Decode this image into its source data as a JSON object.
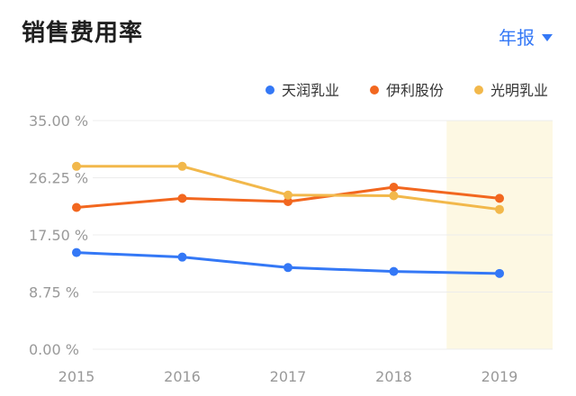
{
  "header": {
    "title": "销售费用率",
    "period_label": "年报"
  },
  "colors": {
    "accent": "#3478f6",
    "highlight_band": "#fdf8e3"
  },
  "chart_data": {
    "type": "line",
    "title": "",
    "xlabel": "",
    "ylabel": "",
    "categories": [
      "2015",
      "2016",
      "2017",
      "2018",
      "2019"
    ],
    "ylim": [
      0,
      35
    ],
    "yticks": [
      "0.00 %",
      "8.75 %",
      "17.50 %",
      "26.25 %",
      "35.00 %"
    ],
    "ytick_values": [
      0,
      8.75,
      17.5,
      26.25,
      35
    ],
    "grid": true,
    "legend_position": "top-right",
    "highlight_category": "2019",
    "series": [
      {
        "name": "天润乳业",
        "color": "#3478f6",
        "values": [
          14.8,
          14.1,
          12.5,
          11.9,
          11.6
        ]
      },
      {
        "name": "伊利股份",
        "color": "#f2671f",
        "values": [
          21.7,
          23.1,
          22.6,
          24.8,
          23.1
        ]
      },
      {
        "name": "光明乳业",
        "color": "#f2b84b",
        "values": [
          28.0,
          28.0,
          23.6,
          23.5,
          21.4
        ]
      }
    ]
  }
}
